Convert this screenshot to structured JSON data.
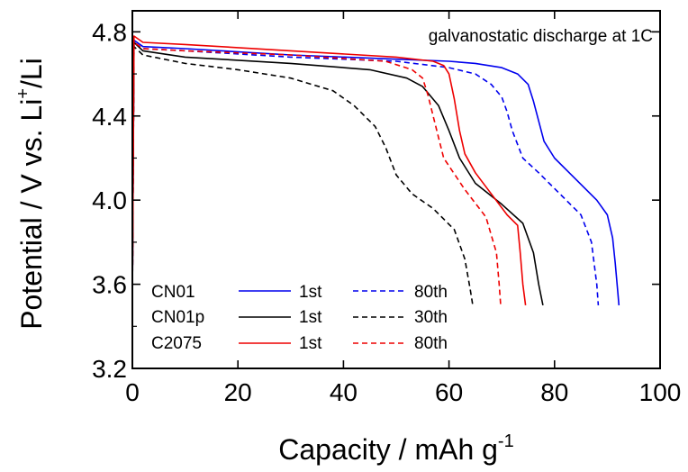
{
  "chart_data": {
    "type": "line",
    "title": "",
    "annotation": "galvanostatic discharge at 1C",
    "xlabel": "Capacity / mAh g",
    "xlabel_sup": "-1",
    "ylabel_pre": "Potential / V vs. Li",
    "ylabel_sup": "+",
    "ylabel_post": "/Li",
    "xlim": [
      0,
      100
    ],
    "ylim": [
      3.2,
      4.9
    ],
    "xticks": [
      0,
      20,
      40,
      60,
      80,
      100
    ],
    "xtick_labels": [
      "0",
      "20",
      "40",
      "60",
      "80",
      "100"
    ],
    "yticks": [
      3.2,
      3.6,
      4.0,
      4.4,
      4.8
    ],
    "ytick_labels": [
      "3.2",
      "3.6",
      "4.0",
      "4.4",
      "4.8"
    ],
    "grid": false,
    "legend": {
      "placement": "bottom-left",
      "groups": [
        {
          "sample": "CN01",
          "entries": [
            {
              "label": "1st",
              "style": "solid"
            },
            {
              "label": "80th",
              "style": "dashed"
            }
          ],
          "color": "#0000ee"
        },
        {
          "sample": "CN01p",
          "entries": [
            {
              "label": "1st",
              "style": "solid"
            },
            {
              "label": "30th",
              "style": "dashed"
            }
          ],
          "color": "#000000"
        },
        {
          "sample": "C2075",
          "entries": [
            {
              "label": "1st",
              "style": "solid"
            },
            {
              "label": "80th",
              "style": "dashed"
            }
          ],
          "color": "#ee0000"
        }
      ]
    },
    "series": [
      {
        "color": "#0000ee",
        "style": "solid",
        "x": [
          0,
          0.3,
          2,
          10,
          30,
          50,
          60,
          65,
          70,
          73,
          75,
          76,
          78,
          80,
          84,
          88,
          90,
          91,
          91.5,
          92,
          92.2
        ],
        "y": [
          3.52,
          4.76,
          4.73,
          4.72,
          4.69,
          4.67,
          4.66,
          4.65,
          4.63,
          4.6,
          4.55,
          4.47,
          4.28,
          4.2,
          4.1,
          4.0,
          3.93,
          3.82,
          3.7,
          3.56,
          3.5
        ]
      },
      {
        "color": "#0000ee",
        "style": "dashed",
        "x": [
          0,
          0.3,
          2,
          10,
          30,
          50,
          60,
          65,
          68,
          70,
          71,
          72,
          74,
          77,
          81,
          85,
          87,
          88,
          88.3
        ],
        "y": [
          3.52,
          4.75,
          4.72,
          4.71,
          4.68,
          4.66,
          4.63,
          4.6,
          4.55,
          4.49,
          4.42,
          4.33,
          4.2,
          4.13,
          4.03,
          3.93,
          3.8,
          3.6,
          3.5
        ]
      },
      {
        "color": "#000000",
        "style": "solid",
        "x": [
          0,
          0.3,
          2,
          10,
          30,
          45,
          52,
          55,
          58,
          60,
          62,
          65,
          70,
          74,
          76,
          77,
          77.8
        ],
        "y": [
          3.52,
          4.75,
          4.71,
          4.68,
          4.65,
          4.62,
          4.58,
          4.54,
          4.45,
          4.33,
          4.2,
          4.08,
          3.98,
          3.89,
          3.75,
          3.6,
          3.5
        ]
      },
      {
        "color": "#000000",
        "style": "dashed",
        "x": [
          0,
          0.3,
          2,
          10,
          20,
          30,
          38,
          42,
          46,
          48,
          50,
          53,
          57,
          61,
          63,
          64,
          64.5
        ],
        "y": [
          3.52,
          4.73,
          4.69,
          4.65,
          4.62,
          4.58,
          4.52,
          4.45,
          4.35,
          4.25,
          4.12,
          4.03,
          3.96,
          3.86,
          3.72,
          3.58,
          3.5
        ]
      },
      {
        "color": "#ee0000",
        "style": "solid",
        "x": [
          0,
          0.3,
          2,
          10,
          30,
          50,
          57,
          59,
          60,
          61,
          62,
          63,
          65,
          68,
          71,
          73,
          73.5,
          74,
          74.5
        ],
        "y": [
          3.52,
          4.78,
          4.75,
          4.74,
          4.71,
          4.68,
          4.66,
          4.64,
          4.6,
          4.48,
          4.33,
          4.22,
          4.13,
          4.03,
          3.93,
          3.88,
          3.75,
          3.6,
          3.5
        ]
      },
      {
        "color": "#ee0000",
        "style": "dashed",
        "x": [
          0,
          0.3,
          2,
          10,
          30,
          48,
          53,
          55,
          56,
          57,
          59,
          63,
          67,
          69,
          69.5,
          69.8
        ],
        "y": [
          3.52,
          4.75,
          4.72,
          4.71,
          4.69,
          4.66,
          4.62,
          4.58,
          4.5,
          4.4,
          4.2,
          4.05,
          3.92,
          3.75,
          3.6,
          3.5
        ]
      }
    ]
  }
}
